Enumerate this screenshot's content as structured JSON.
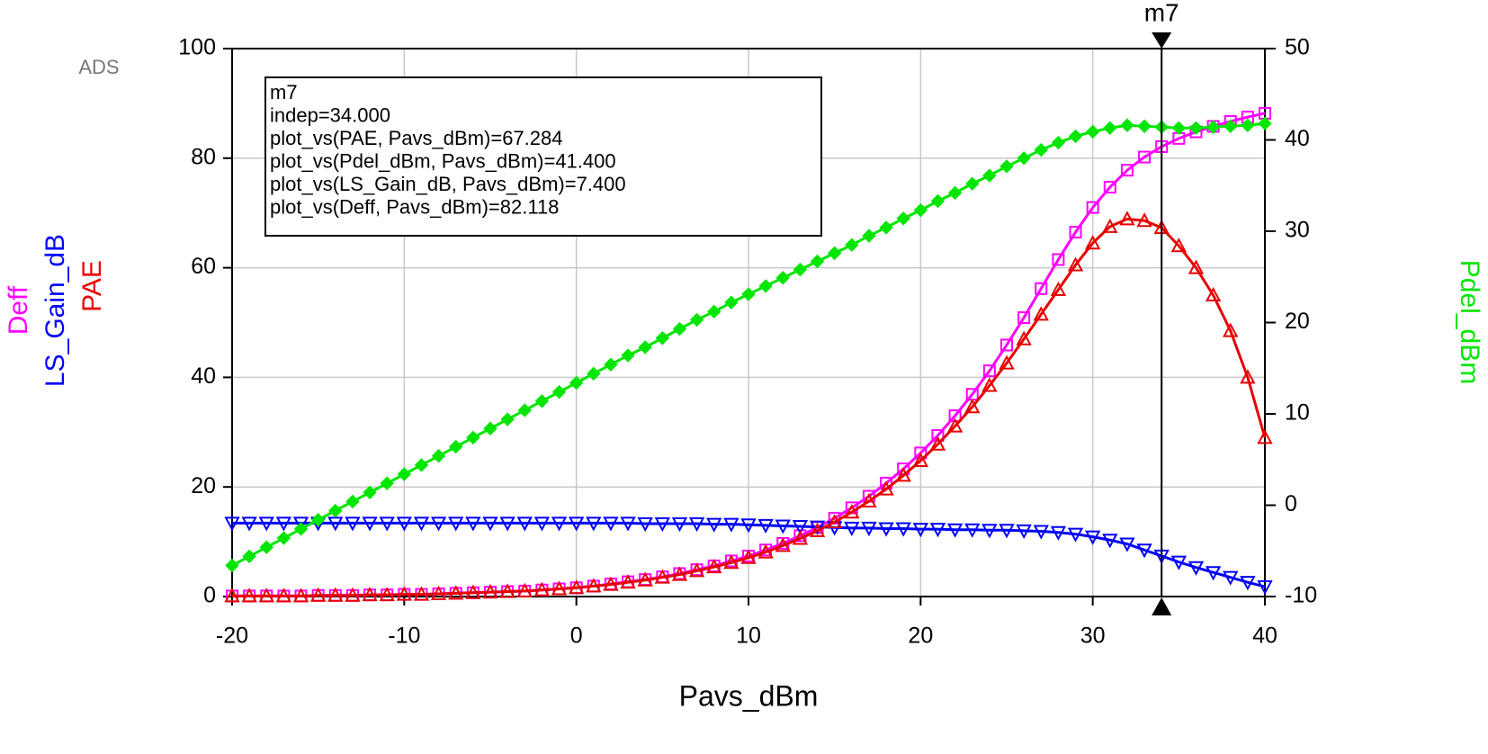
{
  "chart_data": {
    "type": "line",
    "logo": "ADS",
    "x_label": "Pavs_dBm",
    "x": [
      -20,
      -19,
      -18,
      -17,
      -16,
      -15,
      -14,
      -13,
      -12,
      -11,
      -10,
      -9,
      -8,
      -7,
      -6,
      -5,
      -4,
      -3,
      -2,
      -1,
      0,
      1,
      2,
      3,
      4,
      5,
      6,
      7,
      8,
      9,
      10,
      11,
      12,
      13,
      14,
      15,
      16,
      17,
      18,
      19,
      20,
      21,
      22,
      23,
      24,
      25,
      26,
      27,
      28,
      29,
      30,
      31,
      32,
      33,
      34,
      35,
      36,
      37,
      38,
      39,
      40
    ],
    "xlim": [
      -20,
      40
    ],
    "xticks": [
      -20,
      -10,
      0,
      10,
      20,
      30,
      40
    ],
    "ylim": [
      0,
      100
    ],
    "yticks": [
      0,
      20,
      40,
      60,
      80,
      100
    ],
    "y2lim": [
      -10,
      50
    ],
    "y2ticks": [
      -10,
      0,
      10,
      20,
      30,
      40,
      50
    ],
    "grid": true,
    "series": [
      {
        "name": "Deff",
        "color": "#ff00ff",
        "marker": "square",
        "values": [
          0.1,
          0.1,
          0.1,
          0.1,
          0.1,
          0.2,
          0.2,
          0.2,
          0.3,
          0.3,
          0.4,
          0.4,
          0.5,
          0.6,
          0.7,
          0.8,
          0.9,
          1.0,
          1.2,
          1.4,
          1.6,
          1.9,
          2.3,
          2.7,
          3.1,
          3.6,
          4.2,
          4.9,
          5.6,
          6.5,
          7.4,
          8.5,
          9.7,
          11.1,
          12.6,
          14.3,
          16.2,
          18.3,
          20.7,
          23.3,
          26.2,
          29.4,
          33.0,
          36.9,
          41.2,
          45.9,
          50.9,
          56.2,
          61.5,
          66.5,
          71.0,
          74.7,
          77.8,
          80.2,
          82.1,
          83.6,
          84.8,
          85.8,
          86.7,
          87.5,
          88.2
        ]
      },
      {
        "name": "LS_Gain_dB",
        "color": "#0000ff",
        "marker": "triangle-down",
        "values": [
          13.4,
          13.4,
          13.4,
          13.4,
          13.4,
          13.4,
          13.4,
          13.4,
          13.4,
          13.4,
          13.4,
          13.4,
          13.4,
          13.4,
          13.4,
          13.4,
          13.4,
          13.4,
          13.4,
          13.4,
          13.4,
          13.4,
          13.4,
          13.4,
          13.3,
          13.3,
          13.3,
          13.3,
          13.2,
          13.2,
          13.1,
          13.0,
          12.9,
          12.8,
          12.7,
          12.6,
          12.5,
          12.5,
          12.4,
          12.4,
          12.3,
          12.3,
          12.2,
          12.2,
          12.1,
          12.1,
          12.0,
          11.9,
          11.7,
          11.4,
          10.9,
          10.3,
          9.6,
          8.5,
          7.4,
          6.3,
          5.3,
          4.4,
          3.5,
          2.6,
          1.8
        ]
      },
      {
        "name": "PAE",
        "color": "#e80000",
        "marker": "triangle-up",
        "values": [
          0.1,
          0.1,
          0.1,
          0.1,
          0.1,
          0.2,
          0.2,
          0.2,
          0.3,
          0.3,
          0.4,
          0.4,
          0.5,
          0.6,
          0.7,
          0.8,
          0.9,
          1.0,
          1.2,
          1.4,
          1.6,
          1.9,
          2.2,
          2.6,
          3.0,
          3.5,
          4.0,
          4.7,
          5.4,
          6.2,
          7.1,
          8.1,
          9.3,
          10.6,
          12.0,
          13.6,
          15.4,
          17.4,
          19.6,
          22.1,
          24.8,
          27.8,
          31.1,
          34.6,
          38.5,
          42.6,
          47.0,
          51.5,
          56.0,
          60.5,
          64.5,
          67.5,
          68.9,
          68.6,
          67.3,
          64.0,
          60.0,
          55.0,
          48.5,
          40.0,
          29.0
        ]
      },
      {
        "name": "Pdel_dBm",
        "color": "#00e600",
        "marker": "diamond",
        "axis": "y2",
        "values": [
          -6.6,
          -5.6,
          -4.6,
          -3.6,
          -2.6,
          -1.6,
          -0.6,
          0.4,
          1.4,
          2.4,
          3.4,
          4.4,
          5.4,
          6.4,
          7.4,
          8.4,
          9.4,
          10.4,
          11.4,
          12.4,
          13.4,
          14.4,
          15.4,
          16.4,
          17.3,
          18.3,
          19.3,
          20.3,
          21.2,
          22.2,
          23.1,
          24.0,
          24.9,
          25.8,
          26.7,
          27.6,
          28.5,
          29.5,
          30.4,
          31.4,
          32.3,
          33.3,
          34.2,
          35.2,
          36.1,
          37.1,
          38.0,
          38.9,
          39.7,
          40.4,
          40.9,
          41.3,
          41.6,
          41.5,
          41.4,
          41.3,
          41.3,
          41.4,
          41.5,
          41.6,
          41.8
        ]
      }
    ],
    "marker": {
      "name": "m7",
      "x": 34,
      "readout": [
        "m7",
        "indep=34.000",
        "plot_vs(PAE, Pavs_dBm)=67.284",
        "plot_vs(Pdel_dBm, Pavs_dBm)=41.400",
        "plot_vs(LS_Gain_dB, Pavs_dBm)=7.400",
        "plot_vs(Deff, Pavs_dBm)=82.118"
      ]
    }
  }
}
